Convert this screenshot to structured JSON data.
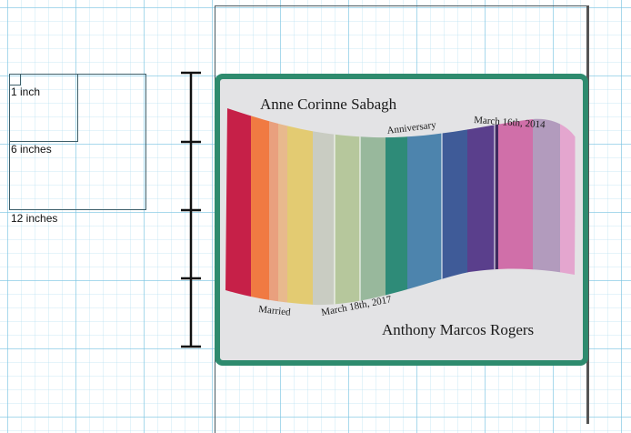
{
  "scale_reference": {
    "small_label": "1 inch",
    "medium_label": "6 inches",
    "large_label": "12 inches"
  },
  "design": {
    "name_top": "Anne Corinne Sabagh",
    "name_bottom": "Anthony Marcos Rogers",
    "anniversary_label": "Anniversary",
    "anniversary_date": "March 16th, 2014",
    "married_label": "Married",
    "married_date": "March 18th, 2017",
    "frame_color": "#2e8b6e",
    "panel_color": "#e3e3e5",
    "stripe_colors": [
      "#c62048",
      "#f07a42",
      "#e9a07e",
      "#e8b98d",
      "#e3cb72",
      "#c9ccc2",
      "#b6c79c",
      "#98b89c",
      "#2e8b78",
      "#4d84ad",
      "#3f5b98",
      "#5a3f8c",
      "#3e2a5f",
      "#d06fa9",
      "#b29bbd",
      "#e4a6cf"
    ]
  }
}
